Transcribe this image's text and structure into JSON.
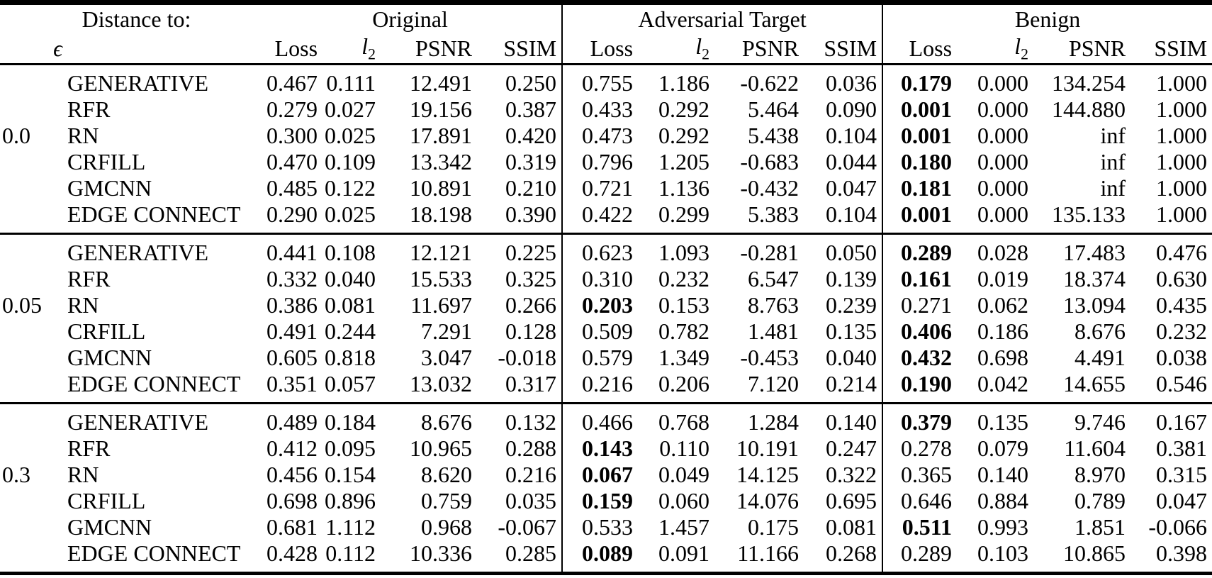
{
  "page": {
    "background_color": "#ffffff",
    "text_color": "#000000"
  },
  "table": {
    "header": {
      "distance_label": "Distance to:",
      "epsilon_symbol": "ϵ",
      "groups": [
        {
          "label": "Original"
        },
        {
          "label": "Adversarial Target"
        },
        {
          "label": "Benign"
        }
      ],
      "metrics": {
        "loss": "Loss",
        "l2_base": "l",
        "l2_sub": "2",
        "psnr": "PSNR",
        "ssim": "SSIM"
      }
    },
    "blocks": [
      {
        "epsilon": "0.0",
        "rows": [
          {
            "method": "GENERATIVE",
            "values": [
              "0.467",
              "0.111",
              "12.491",
              "0.250",
              "0.755",
              "1.186",
              "-0.622",
              "0.036",
              "0.179",
              "0.000",
              "134.254",
              "1.000"
            ],
            "bold": [
              8
            ]
          },
          {
            "method": "RFR",
            "values": [
              "0.279",
              "0.027",
              "19.156",
              "0.387",
              "0.433",
              "0.292",
              "5.464",
              "0.090",
              "0.001",
              "0.000",
              "144.880",
              "1.000"
            ],
            "bold": [
              8
            ]
          },
          {
            "method": "RN",
            "values": [
              "0.300",
              "0.025",
              "17.891",
              "0.420",
              "0.473",
              "0.292",
              "5.438",
              "0.104",
              "0.001",
              "0.000",
              "inf",
              "1.000"
            ],
            "bold": [
              8
            ]
          },
          {
            "method": "CRFILL",
            "values": [
              "0.470",
              "0.109",
              "13.342",
              "0.319",
              "0.796",
              "1.205",
              "-0.683",
              "0.044",
              "0.180",
              "0.000",
              "inf",
              "1.000"
            ],
            "bold": [
              8
            ]
          },
          {
            "method": "GMCNN",
            "values": [
              "0.485",
              "0.122",
              "10.891",
              "0.210",
              "0.721",
              "1.136",
              "-0.432",
              "0.047",
              "0.181",
              "0.000",
              "inf",
              "1.000"
            ],
            "bold": [
              8
            ]
          },
          {
            "method": "EDGE CONNECT",
            "values": [
              "0.290",
              "0.025",
              "18.198",
              "0.390",
              "0.422",
              "0.299",
              "5.383",
              "0.104",
              "0.001",
              "0.000",
              "135.133",
              "1.000"
            ],
            "bold": [
              8
            ]
          }
        ]
      },
      {
        "epsilon": "0.05",
        "rows": [
          {
            "method": "GENERATIVE",
            "values": [
              "0.441",
              "0.108",
              "12.121",
              "0.225",
              "0.623",
              "1.093",
              "-0.281",
              "0.050",
              "0.289",
              "0.028",
              "17.483",
              "0.476"
            ],
            "bold": [
              8
            ]
          },
          {
            "method": "RFR",
            "values": [
              "0.332",
              "0.040",
              "15.533",
              "0.325",
              "0.310",
              "0.232",
              "6.547",
              "0.139",
              "0.161",
              "0.019",
              "18.374",
              "0.630"
            ],
            "bold": [
              8
            ]
          },
          {
            "method": "RN",
            "values": [
              "0.386",
              "0.081",
              "11.697",
              "0.266",
              "0.203",
              "0.153",
              "8.763",
              "0.239",
              "0.271",
              "0.062",
              "13.094",
              "0.435"
            ],
            "bold": [
              4
            ]
          },
          {
            "method": "CRFILL",
            "values": [
              "0.491",
              "0.244",
              "7.291",
              "0.128",
              "0.509",
              "0.782",
              "1.481",
              "0.135",
              "0.406",
              "0.186",
              "8.676",
              "0.232"
            ],
            "bold": [
              8
            ]
          },
          {
            "method": "GMCNN",
            "values": [
              "0.605",
              "0.818",
              "3.047",
              "-0.018",
              "0.579",
              "1.349",
              "-0.453",
              "0.040",
              "0.432",
              "0.698",
              "4.491",
              "0.038"
            ],
            "bold": [
              8
            ]
          },
          {
            "method": "EDGE CONNECT",
            "values": [
              "0.351",
              "0.057",
              "13.032",
              "0.317",
              "0.216",
              "0.206",
              "7.120",
              "0.214",
              "0.190",
              "0.042",
              "14.655",
              "0.546"
            ],
            "bold": [
              8
            ]
          }
        ]
      },
      {
        "epsilon": "0.3",
        "rows": [
          {
            "method": "GENERATIVE",
            "values": [
              "0.489",
              "0.184",
              "8.676",
              "0.132",
              "0.466",
              "0.768",
              "1.284",
              "0.140",
              "0.379",
              "0.135",
              "9.746",
              "0.167"
            ],
            "bold": [
              8
            ]
          },
          {
            "method": "RFR",
            "values": [
              "0.412",
              "0.095",
              "10.965",
              "0.288",
              "0.143",
              "0.110",
              "10.191",
              "0.247",
              "0.278",
              "0.079",
              "11.604",
              "0.381"
            ],
            "bold": [
              4
            ]
          },
          {
            "method": "RN",
            "values": [
              "0.456",
              "0.154",
              "8.620",
              "0.216",
              "0.067",
              "0.049",
              "14.125",
              "0.322",
              "0.365",
              "0.140",
              "8.970",
              "0.315"
            ],
            "bold": [
              4
            ]
          },
          {
            "method": "CRFILL",
            "values": [
              "0.698",
              "0.896",
              "0.759",
              "0.035",
              "0.159",
              "0.060",
              "14.076",
              "0.695",
              "0.646",
              "0.884",
              "0.789",
              "0.047"
            ],
            "bold": [
              4
            ]
          },
          {
            "method": "GMCNN",
            "values": [
              "0.681",
              "1.112",
              "0.968",
              "-0.067",
              "0.533",
              "1.457",
              "0.175",
              "0.081",
              "0.511",
              "0.993",
              "1.851",
              "-0.066"
            ],
            "bold": [
              8
            ]
          },
          {
            "method": "EDGE CONNECT",
            "values": [
              "0.428",
              "0.112",
              "10.336",
              "0.285",
              "0.089",
              "0.091",
              "11.166",
              "0.268",
              "0.289",
              "0.103",
              "10.865",
              "0.398"
            ],
            "bold": [
              4
            ]
          }
        ]
      }
    ]
  }
}
